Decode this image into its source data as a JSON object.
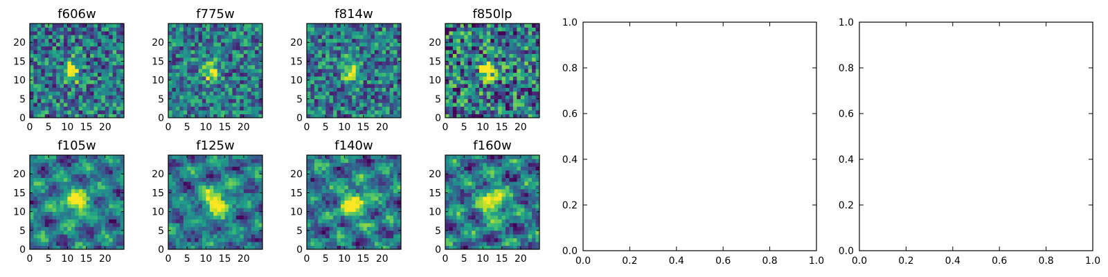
{
  "chart_data": [
    {
      "type": "heatmap",
      "title": "f606w",
      "xlim": [
        0,
        25
      ],
      "ylim": [
        0,
        25
      ],
      "xticks": [
        "0",
        "5",
        "10",
        "15",
        "20"
      ],
      "yticks": [
        "0",
        "5",
        "10",
        "15",
        "20"
      ],
      "colormap": "viridis",
      "peak": [
        11,
        12
      ],
      "spread": [
        1.3,
        2.0
      ],
      "noise": 0.34,
      "structure": 0.0
    },
    {
      "type": "heatmap",
      "title": "f775w",
      "xlim": [
        0,
        25
      ],
      "ylim": [
        0,
        25
      ],
      "xticks": [
        "0",
        "5",
        "10",
        "15",
        "20"
      ],
      "yticks": [
        "0",
        "5",
        "10",
        "15",
        "20"
      ],
      "colormap": "viridis",
      "peak": [
        11,
        12
      ],
      "spread": [
        1.3,
        2.0
      ],
      "noise": 0.32,
      "structure": 0.0
    },
    {
      "type": "heatmap",
      "title": "f814w",
      "xlim": [
        0,
        25
      ],
      "ylim": [
        0,
        25
      ],
      "xticks": [
        "0",
        "5",
        "10",
        "15",
        "20"
      ],
      "yticks": [
        "0",
        "5",
        "10",
        "15",
        "20"
      ],
      "colormap": "viridis",
      "peak": [
        11,
        12
      ],
      "spread": [
        1.4,
        2.0
      ],
      "noise": 0.32,
      "structure": 0.0
    },
    {
      "type": "heatmap",
      "title": "f850lp",
      "xlim": [
        0,
        25
      ],
      "ylim": [
        0,
        25
      ],
      "xticks": [
        "0",
        "5",
        "10",
        "15",
        "20"
      ],
      "yticks": [
        "0",
        "5",
        "10",
        "15",
        "20"
      ],
      "colormap": "viridis",
      "peak": [
        11,
        12
      ],
      "spread": [
        1.5,
        2.0
      ],
      "noise": 0.42,
      "structure": 0.0
    },
    {
      "type": "heatmap",
      "title": "f105w",
      "xlim": [
        0,
        25
      ],
      "ylim": [
        0,
        25
      ],
      "xticks": [
        "0",
        "5",
        "10",
        "15",
        "20"
      ],
      "yticks": [
        "0",
        "5",
        "10",
        "15",
        "20"
      ],
      "colormap": "viridis",
      "peak": [
        12,
        12
      ],
      "spread": [
        2.5,
        2.6
      ],
      "noise": 0.16,
      "structure": 0.28
    },
    {
      "type": "heatmap",
      "title": "f125w",
      "xlim": [
        0,
        25
      ],
      "ylim": [
        0,
        25
      ],
      "xticks": [
        "0",
        "5",
        "10",
        "15",
        "20"
      ],
      "yticks": [
        "0",
        "5",
        "10",
        "15",
        "20"
      ],
      "colormap": "viridis",
      "peak": [
        12,
        12
      ],
      "spread": [
        2.5,
        2.5
      ],
      "noise": 0.16,
      "structure": 0.26
    },
    {
      "type": "heatmap",
      "title": "f140w",
      "xlim": [
        0,
        25
      ],
      "ylim": [
        0,
        25
      ],
      "xticks": [
        "0",
        "5",
        "10",
        "15",
        "20"
      ],
      "yticks": [
        "0",
        "5",
        "10",
        "15",
        "20"
      ],
      "colormap": "viridis",
      "peak": [
        12,
        12
      ],
      "spread": [
        2.6,
        2.6
      ],
      "noise": 0.18,
      "structure": 0.3
    },
    {
      "type": "heatmap",
      "title": "f160w",
      "xlim": [
        0,
        25
      ],
      "ylim": [
        0,
        25
      ],
      "xticks": [
        "0",
        "5",
        "10",
        "15",
        "20"
      ],
      "yticks": [
        "0",
        "5",
        "10",
        "15",
        "20"
      ],
      "colormap": "viridis",
      "peak": [
        12,
        12
      ],
      "spread": [
        2.4,
        2.6
      ],
      "noise": 0.18,
      "structure": 0.3
    },
    {
      "type": "line",
      "title": "",
      "xlim": [
        0,
        1
      ],
      "ylim": [
        0,
        1
      ],
      "xticks": [
        "0.0",
        "0.2",
        "0.4",
        "0.6",
        "0.8",
        "1.0"
      ],
      "yticks": [
        "0.0",
        "0.2",
        "0.4",
        "0.6",
        "0.8",
        "1.0"
      ],
      "series": []
    },
    {
      "type": "line",
      "title": "",
      "xlim": [
        0,
        1
      ],
      "ylim": [
        0,
        1
      ],
      "xticks": [
        "0.0",
        "0.2",
        "0.4",
        "0.6",
        "0.8",
        "1.0"
      ],
      "yticks": [
        "0.0",
        "0.2",
        "0.4",
        "0.6",
        "0.8",
        "1.0"
      ],
      "series": []
    }
  ]
}
